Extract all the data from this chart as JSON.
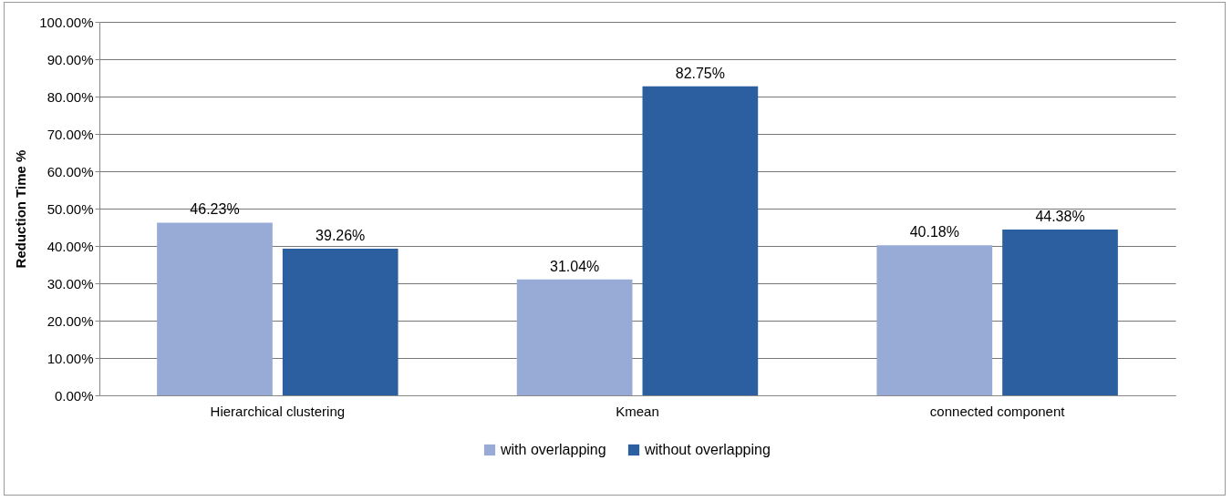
{
  "chart_data": {
    "type": "bar",
    "ylabel": "Reduction Time %",
    "categories": [
      "Hierarchical clustering",
      "Kmean",
      "connected component"
    ],
    "series": [
      {
        "name": "with overlapping",
        "color": "#98aad6",
        "values": [
          46.23,
          31.04,
          40.18
        ],
        "value_labels": [
          "46.23%",
          "31.04%",
          "40.18%"
        ]
      },
      {
        "name": "without overlapping",
        "color": "#2b5fa0",
        "values": [
          39.26,
          82.75,
          44.38
        ],
        "value_labels": [
          "39.26%",
          "82.75%",
          "44.38%"
        ]
      }
    ],
    "ylim": [
      0,
      100
    ],
    "yticks": [
      {
        "value": 0,
        "label": "0.00%"
      },
      {
        "value": 10,
        "label": "10.00%"
      },
      {
        "value": 20,
        "label": "20.00%"
      },
      {
        "value": 30,
        "label": "30.00%"
      },
      {
        "value": 40,
        "label": "40.00%"
      },
      {
        "value": 50,
        "label": "50.00%"
      },
      {
        "value": 60,
        "label": "60.00%"
      },
      {
        "value": 70,
        "label": "70.00%"
      },
      {
        "value": 80,
        "label": "80.00%"
      },
      {
        "value": 90,
        "label": "90.00%"
      },
      {
        "value": 100,
        "label": "100.00%"
      }
    ],
    "grid": "y",
    "legend": "bottom"
  }
}
